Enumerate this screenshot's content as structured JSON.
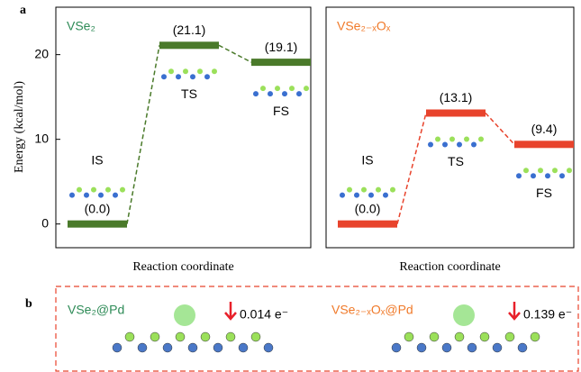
{
  "panel_labels": [
    "a",
    "b"
  ],
  "chart_data": [
    {
      "type": "energy-profile",
      "title": "VSe₂",
      "categories": [
        "IS",
        "TS",
        "FS"
      ],
      "values": [
        0.0,
        21.1,
        19.1
      ],
      "value_labels": [
        "(0.0)",
        "(21.1)",
        "(19.1)"
      ],
      "color": "#4a7a2a",
      "title_color": "#2e8b57",
      "ylim": [
        -2.8,
        25.6
      ],
      "yticks": [
        0,
        10,
        20
      ],
      "ylabel": "Energy (kcal/mol)",
      "xlabel": "Reaction coordinate"
    },
    {
      "type": "energy-profile",
      "title": "VSe₂₋ₓOₓ",
      "categories": [
        "IS",
        "TS",
        "FS"
      ],
      "values": [
        0.0,
        13.1,
        9.4
      ],
      "value_labels": [
        "(0.0)",
        "(13.1)",
        "(9.4)"
      ],
      "color": "#e8432c",
      "title_color": "#f07a2a",
      "ylim": [
        -2.8,
        25.6
      ],
      "xlabel": "Reaction coordinate"
    }
  ],
  "panel_b": {
    "items": [
      {
        "label": "VSe₂@Pd",
        "charge": "0.014 e⁻"
      },
      {
        "label": "VSe₂₋ₓOₓ@Pd",
        "charge": "0.139 e⁻"
      }
    ]
  }
}
